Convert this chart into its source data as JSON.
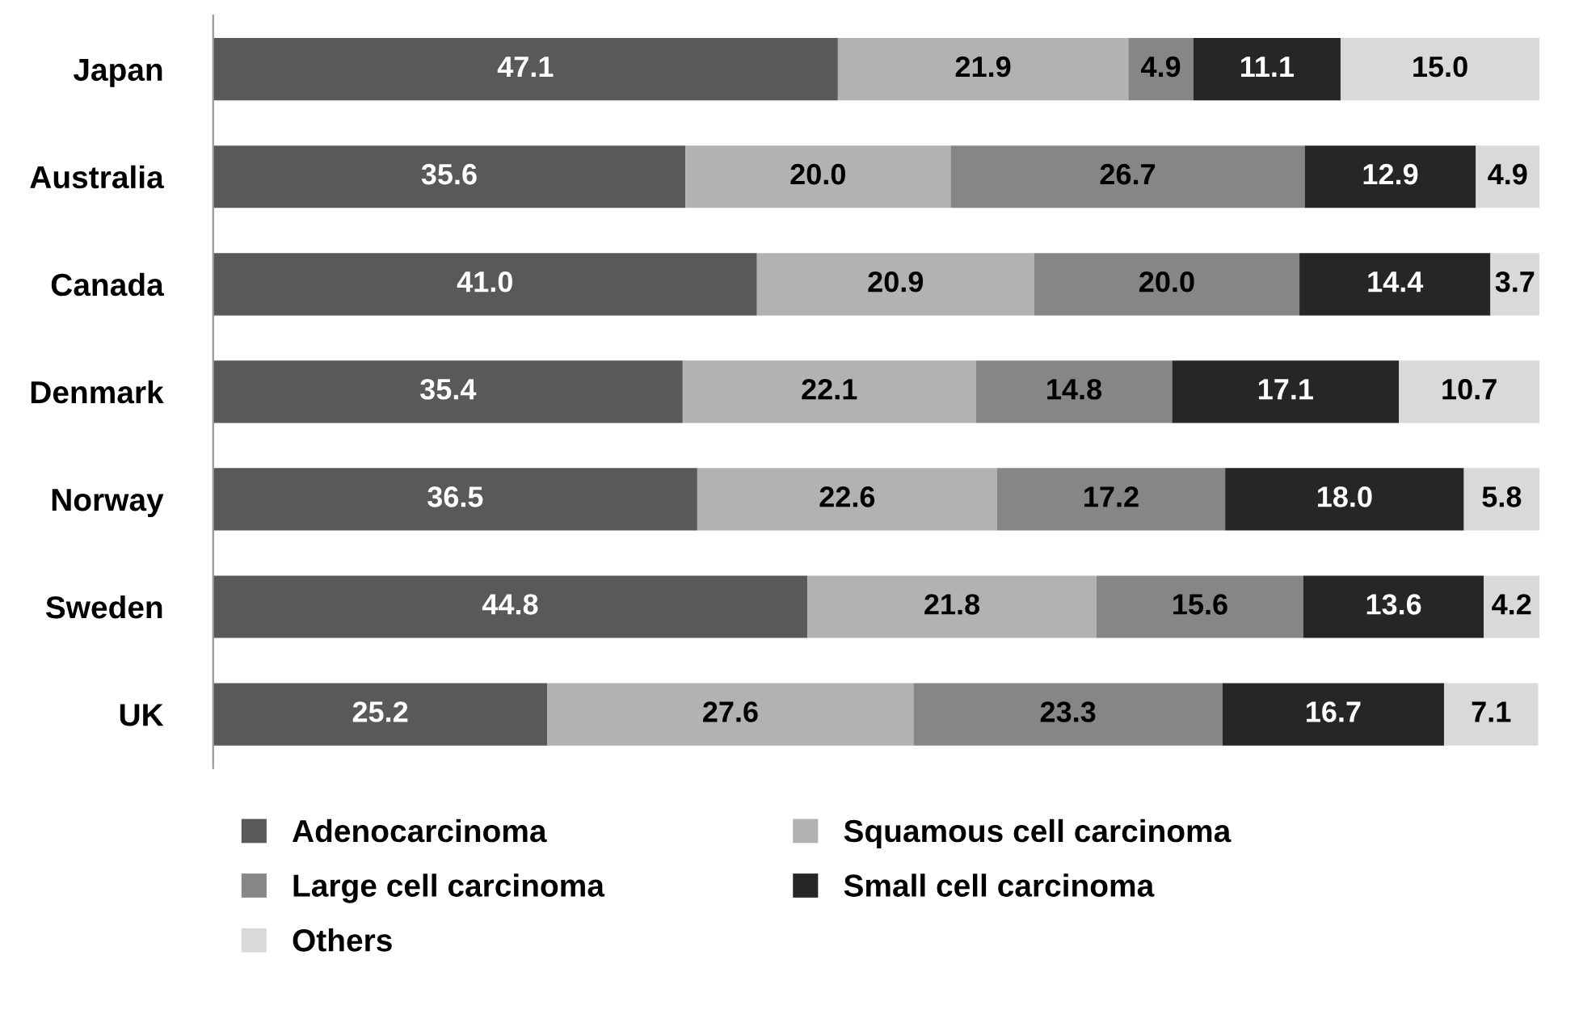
{
  "chart_data": {
    "type": "bar",
    "orientation": "horizontal",
    "stacked": true,
    "legend": "bottom",
    "grid": false,
    "tick_labels": "y",
    "xlim": [
      0,
      100
    ],
    "categories": [
      "Japan",
      "Australia",
      "Canada",
      "Denmark",
      "Norway",
      "Sweden",
      "UK"
    ],
    "series": [
      {
        "name": "Adenocarcinoma",
        "color": "#595959",
        "values": [
          47.1,
          35.6,
          41.0,
          35.4,
          36.5,
          44.8,
          25.2
        ],
        "value_labels": [
          "47.1",
          "35.6",
          "41.0",
          "35.4",
          "36.5",
          "44.8",
          "25.2"
        ]
      },
      {
        "name": "Squamous cell carcinoma",
        "color": "#b2b2b2",
        "values": [
          21.9,
          20.0,
          20.9,
          22.1,
          22.6,
          21.8,
          27.6
        ],
        "value_labels": [
          "21.9",
          "20.0",
          "20.9",
          "22.1",
          "22.6",
          "21.8",
          "27.6"
        ]
      },
      {
        "name": "Large cell carcinoma",
        "color": "#868686",
        "values": [
          4.9,
          26.7,
          20.0,
          14.8,
          17.2,
          15.6,
          23.3
        ],
        "value_labels": [
          "4.9",
          "26.7",
          "20.0",
          "14.8",
          "17.2",
          "15.6",
          "23.3"
        ]
      },
      {
        "name": "Small cell carcinoma",
        "color": "#262626",
        "values": [
          11.1,
          12.9,
          14.4,
          17.1,
          18.0,
          13.6,
          16.7
        ],
        "value_labels": [
          "11.1",
          "12.9",
          "14.4",
          "17.1",
          "18.0",
          "13.6",
          "16.7"
        ]
      },
      {
        "name": "Others",
        "color": "#d9d9d9",
        "values": [
          15.0,
          4.9,
          3.7,
          10.7,
          5.8,
          4.2,
          7.1
        ],
        "value_labels": [
          "15.0",
          "4.9",
          "3.7",
          "10.7",
          "5.8",
          "4.2",
          "7.1"
        ]
      }
    ]
  }
}
